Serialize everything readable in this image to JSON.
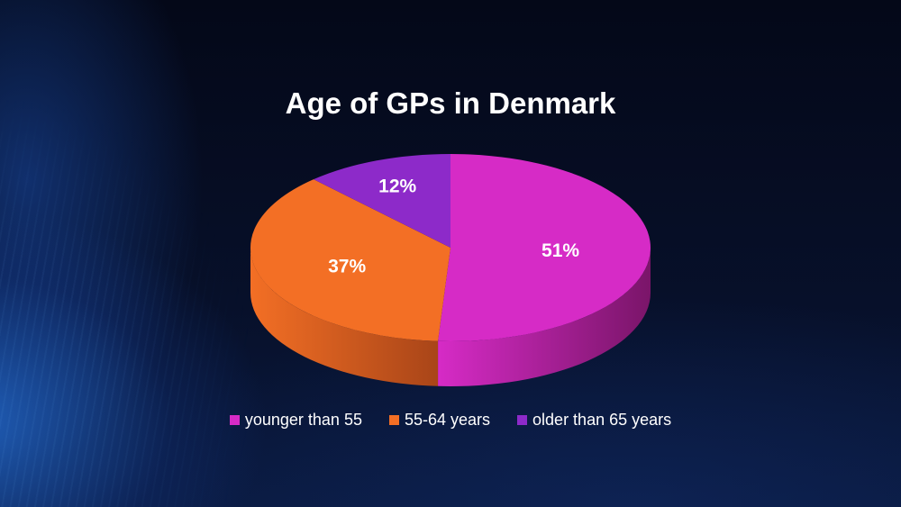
{
  "chart_data": {
    "type": "pie",
    "title": "Age of GPs in Denmark",
    "slices": [
      {
        "label": "younger than 55",
        "value": 51,
        "display": "51%",
        "color": "#d62bc6",
        "side_color": "#7a1569"
      },
      {
        "label": "55-64 years",
        "value": 37,
        "display": "37%",
        "color": "#f36f25",
        "side_color": "#a94518"
      },
      {
        "label": "older than 65 years",
        "value": 12,
        "display": "12%",
        "color": "#8d2ac9",
        "side_color": "#5a1a85"
      }
    ],
    "legend_position": "bottom",
    "style": "3d"
  }
}
